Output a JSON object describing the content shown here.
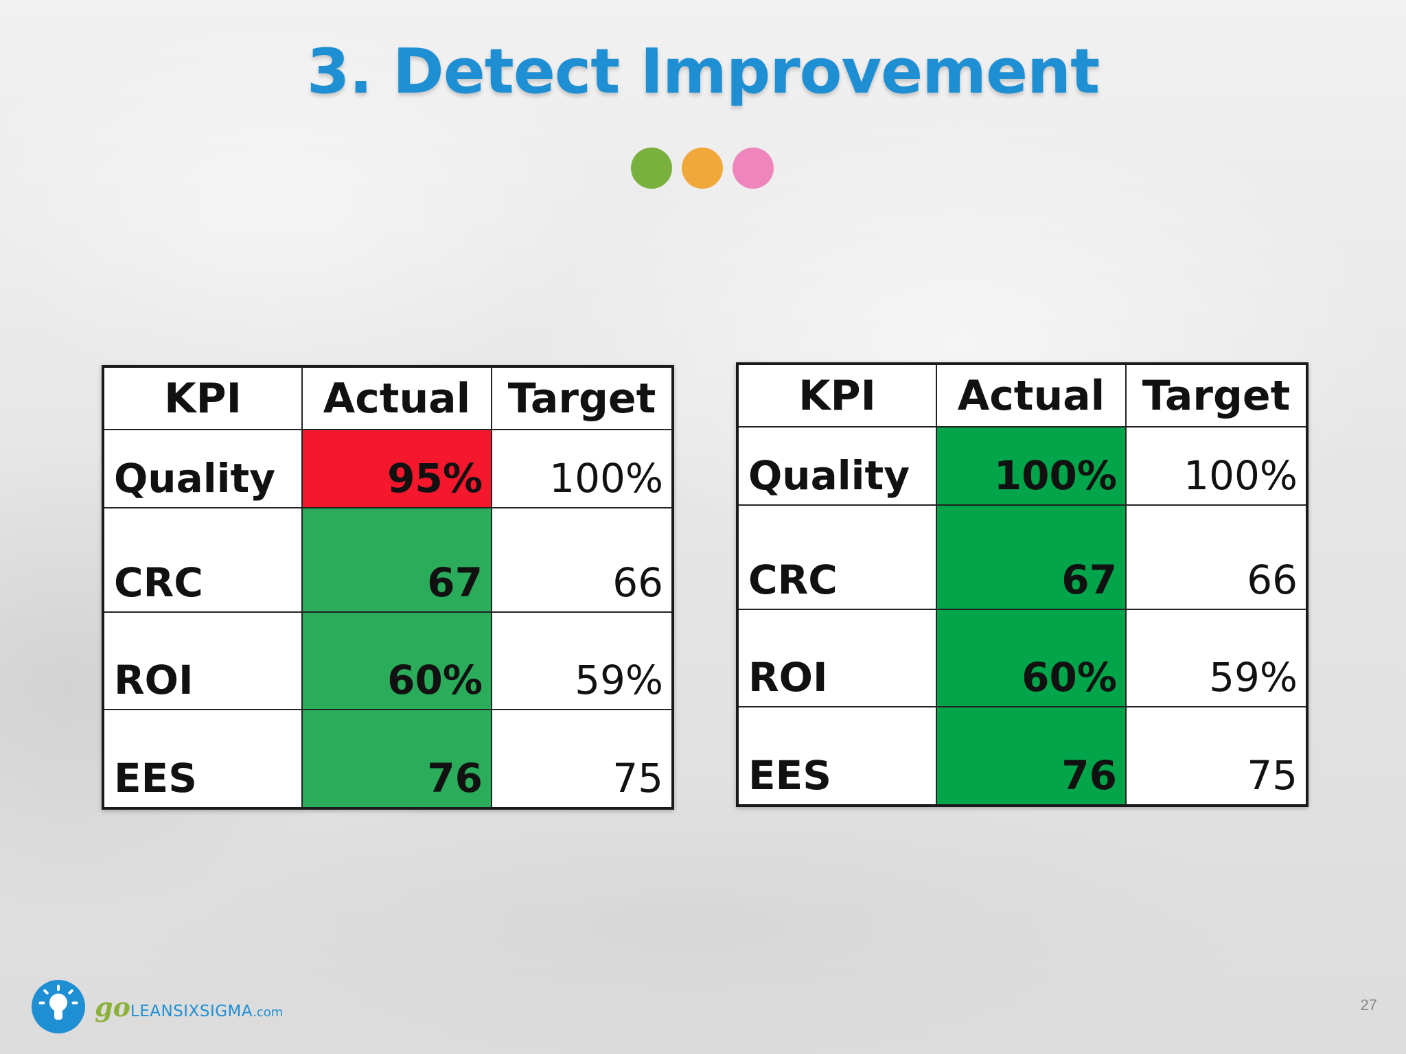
{
  "slide": {
    "title": "3. Detect Improvement",
    "page_number": "27"
  },
  "dots": [
    {
      "name": "green",
      "color": "#7ab03e"
    },
    {
      "name": "orange",
      "color": "#f0a83a"
    },
    {
      "name": "pink",
      "color": "#ee86bd"
    }
  ],
  "colors": {
    "title": "#1f8fd3",
    "red_fill": "#f5182d",
    "green_fill_left": "#2bac5b",
    "green_fill_right": "#03a54a"
  },
  "tables": {
    "left": {
      "headers": {
        "kpi": "KPI",
        "actual": "Actual",
        "target": "Target"
      },
      "rows": [
        {
          "kpi": "Quality",
          "actual": "95%",
          "target": "100%",
          "status": "red"
        },
        {
          "kpi": "CRC",
          "actual": "67",
          "target": "66",
          "status": "green"
        },
        {
          "kpi": "ROI",
          "actual": "60%",
          "target": "59%",
          "status": "green"
        },
        {
          "kpi": "EES",
          "actual": "76",
          "target": "75",
          "status": "green"
        }
      ]
    },
    "right": {
      "headers": {
        "kpi": "KPI",
        "actual": "Actual",
        "target": "Target"
      },
      "rows": [
        {
          "kpi": "Quality",
          "actual": "100%",
          "target": "100%",
          "status": "green"
        },
        {
          "kpi": "CRC",
          "actual": "67",
          "target": "66",
          "status": "green"
        },
        {
          "kpi": "ROI",
          "actual": "60%",
          "target": "59%",
          "status": "green"
        },
        {
          "kpi": "EES",
          "actual": "76",
          "target": "75",
          "status": "green"
        }
      ]
    }
  },
  "logo": {
    "go": "go",
    "name": "LEANSIXSIGMA",
    "domain": ".com",
    "icon": "lightbulb-icon"
  }
}
